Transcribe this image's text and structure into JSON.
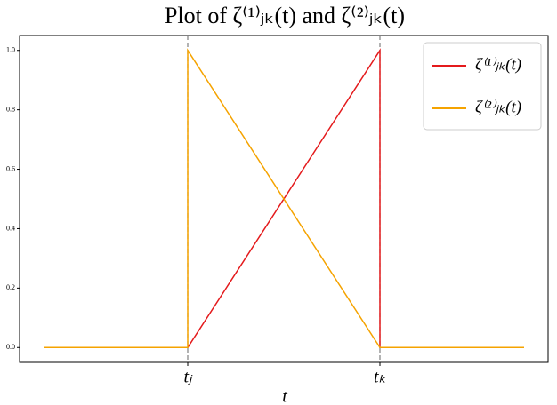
{
  "chart_data": {
    "type": "line",
    "title": "Plot of ζ⁽¹⁾ⱼₖ(t) and ζ⁽²⁾ⱼₖ(t)",
    "xlabel": "t",
    "x": [
      0.25,
      1,
      1,
      2,
      2,
      2.75
    ],
    "series": [
      {
        "name": "ζ⁽¹⁾ⱼₖ(t)",
        "color": "#e41a1c",
        "values": [
          0,
          0,
          0,
          1,
          0,
          0
        ]
      },
      {
        "name": "ζ⁽²⁾ⱼₖ(t)",
        "color": "#f5a300",
        "values": [
          0,
          0,
          1,
          0,
          0,
          0
        ]
      }
    ],
    "xlim": [
      0.125,
      2.875
    ],
    "ylim": [
      -0.05,
      1.05
    ],
    "xticks": [
      {
        "value": 1,
        "label": "tⱼ"
      },
      {
        "value": 2,
        "label": "tₖ"
      }
    ],
    "yticks": [
      {
        "value": 0,
        "label": "0.0"
      },
      0.2,
      0.4,
      0.6,
      0.8,
      {
        "value": 1,
        "label": "1.0"
      }
    ],
    "legend": "upper right"
  }
}
